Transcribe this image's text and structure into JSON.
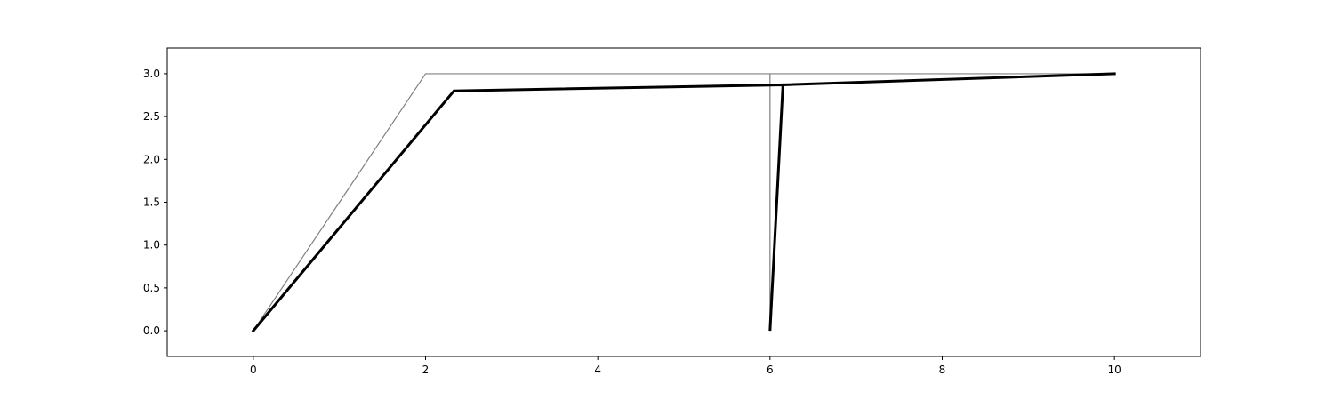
{
  "chart_data": {
    "type": "line",
    "title": "",
    "xlabel": "",
    "ylabel": "",
    "xlim": [
      -1,
      11
    ],
    "ylim": [
      -0.3,
      3.3
    ],
    "grid": false,
    "legend": "none",
    "xticks": [
      0,
      2,
      4,
      6,
      8,
      10
    ],
    "xtick_labels": [
      "0",
      "2",
      "4",
      "6",
      "8",
      "10"
    ],
    "yticks": [
      0.0,
      0.5,
      1.0,
      1.5,
      2.0,
      2.5,
      3.0
    ],
    "ytick_labels": [
      "0.0",
      "0.5",
      "1.0",
      "1.5",
      "2.0",
      "2.5",
      "3.0"
    ],
    "series": [
      {
        "color": "#808080",
        "style": "thin",
        "x": [
          0,
          2,
          6,
          6,
          6,
          10
        ],
        "y": [
          0,
          3,
          3,
          0,
          3,
          3
        ]
      },
      {
        "color": "#000000",
        "style": "thick",
        "x": [
          0,
          2.33,
          6.15,
          6.0,
          6.15,
          10
        ],
        "y": [
          0,
          2.8,
          2.87,
          0,
          2.87,
          3.0
        ]
      }
    ]
  }
}
